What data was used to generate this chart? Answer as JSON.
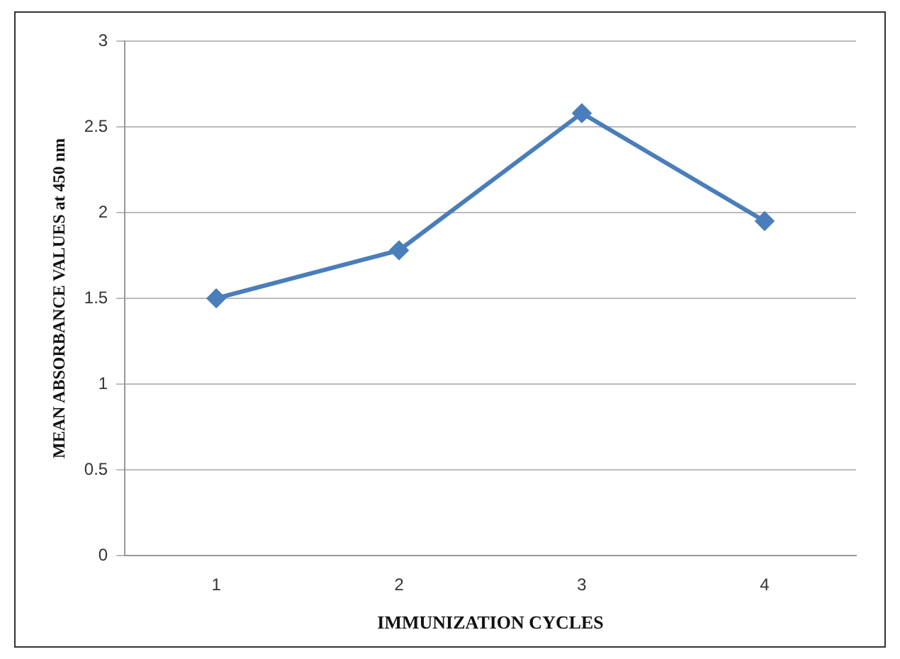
{
  "chart_data": {
    "type": "line",
    "xlabel": "IMMUNIZATION CYCLES",
    "ylabel": "MEAN ABSORBANCE VALUES at 450 nm",
    "categories": [
      "1",
      "2",
      "3",
      "4"
    ],
    "series": [
      {
        "color": "#4a7ebb",
        "values": [
          1.5,
          1.78,
          2.58,
          1.95
        ]
      }
    ],
    "ylim": [
      0,
      3
    ],
    "yticks": [
      0,
      0.5,
      1,
      1.5,
      2,
      2.5,
      3
    ],
    "grid": "y",
    "legend": false,
    "marker": "diamond",
    "line_style": "solid"
  }
}
